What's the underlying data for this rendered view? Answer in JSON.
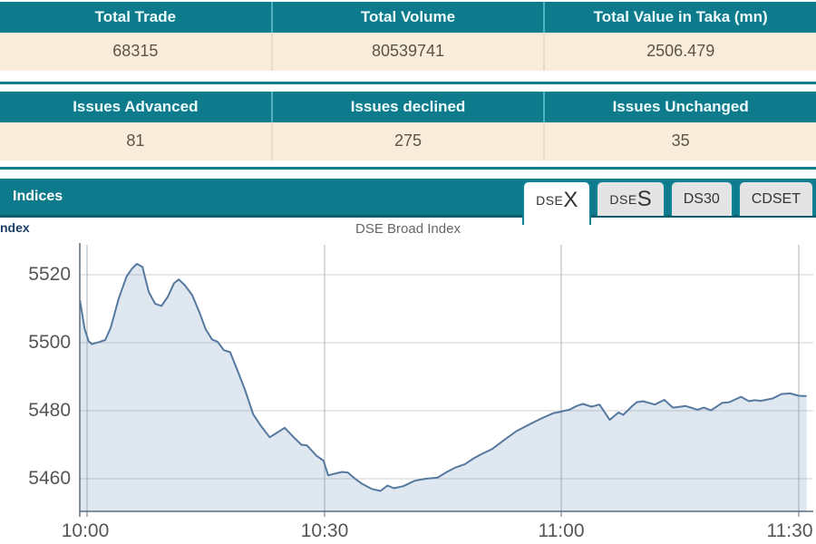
{
  "summary_table": {
    "headers": [
      "Total Trade",
      "Total Volume",
      "Total Value in Taka (mn)"
    ],
    "values": [
      "68315",
      "80539741",
      "2506.479"
    ]
  },
  "issues_table": {
    "headers": [
      "Issues Advanced",
      "Issues declined",
      "Issues Unchanged"
    ],
    "values": [
      "81",
      "275",
      "35"
    ]
  },
  "indices": {
    "title": "Indices",
    "tabs": [
      {
        "label_small": "DSE",
        "label_big": "X",
        "label": "DSEX",
        "active": true
      },
      {
        "label_small": "DSE",
        "label_big": "S",
        "label": "DSES",
        "active": false
      },
      {
        "label": "DS30",
        "active": false
      },
      {
        "label": "CDSET",
        "active": false
      }
    ]
  },
  "chart": {
    "partial_left_label": "ndex",
    "title": "DSE Broad Index"
  },
  "colors": {
    "teal": "#0e7b8c",
    "teal_dark": "#0a5c6b",
    "tab_border": "#0f8294",
    "cream": "#f9ecdb",
    "line": "#56799f",
    "fill": "rgba(110,145,185,0.22)",
    "grid_h": "#cfcfcf",
    "grid_v": "#aab3bb",
    "axis": "#5d6e7e",
    "label_gray": "#555555"
  },
  "chart_data": {
    "type": "area",
    "title": "DSE Broad Index",
    "x_unit": "minutes after 10:00",
    "x_tick_labels": [
      "10:00",
      "10:30",
      "11:00",
      "11:30"
    ],
    "x_tick_minutes": [
      0,
      30,
      60,
      90
    ],
    "y_tick_labels": [
      "5520",
      "5500",
      "5480",
      "5460"
    ],
    "ylim": [
      5450,
      5530
    ],
    "grid": true,
    "legend_position": "none",
    "series": [
      {
        "name": "DSE Broad Index",
        "points": [
          [
            -0.9,
            5512.5
          ],
          [
            -0.3,
            5504.0
          ],
          [
            0.2,
            5500.5
          ],
          [
            0.6,
            5499.6
          ],
          [
            1.5,
            5500.2
          ],
          [
            2.3,
            5500.8
          ],
          [
            3.0,
            5504.5
          ],
          [
            4.0,
            5513.0
          ],
          [
            5.0,
            5519.5
          ],
          [
            5.7,
            5521.8
          ],
          [
            6.3,
            5523.2
          ],
          [
            7.0,
            5522.3
          ],
          [
            7.8,
            5515.0
          ],
          [
            8.6,
            5511.5
          ],
          [
            9.4,
            5510.8
          ],
          [
            10.2,
            5513.5
          ],
          [
            11.0,
            5517.5
          ],
          [
            11.6,
            5518.6
          ],
          [
            12.4,
            5516.8
          ],
          [
            13.3,
            5514.0
          ],
          [
            14.2,
            5509.0
          ],
          [
            15.0,
            5504.0
          ],
          [
            15.8,
            5501.0
          ],
          [
            16.5,
            5500.3
          ],
          [
            17.3,
            5497.8
          ],
          [
            18.1,
            5497.2
          ],
          [
            19.0,
            5492.0
          ],
          [
            20.0,
            5486.0
          ],
          [
            21.0,
            5479.0
          ],
          [
            22.0,
            5475.5
          ],
          [
            23.1,
            5472.2
          ],
          [
            24.0,
            5473.5
          ],
          [
            25.0,
            5475.0
          ],
          [
            26.0,
            5472.5
          ],
          [
            27.1,
            5470.0
          ],
          [
            27.8,
            5469.8
          ],
          [
            29.0,
            5466.8
          ],
          [
            29.9,
            5465.3
          ],
          [
            30.5,
            5461.0
          ],
          [
            31.5,
            5461.6
          ],
          [
            32.3,
            5462.0
          ],
          [
            33.0,
            5461.8
          ],
          [
            34.0,
            5459.8
          ],
          [
            34.7,
            5458.6
          ],
          [
            36.0,
            5457.0
          ],
          [
            37.1,
            5456.4
          ],
          [
            38.0,
            5458.0
          ],
          [
            38.8,
            5457.2
          ],
          [
            40.0,
            5457.8
          ],
          [
            41.4,
            5459.4
          ],
          [
            42.8,
            5460.0
          ],
          [
            44.3,
            5460.3
          ],
          [
            45.5,
            5462.0
          ],
          [
            46.6,
            5463.3
          ],
          [
            47.8,
            5464.3
          ],
          [
            48.9,
            5466.0
          ],
          [
            50.0,
            5467.4
          ],
          [
            51.2,
            5468.7
          ],
          [
            52.8,
            5471.5
          ],
          [
            54.3,
            5474.0
          ],
          [
            55.3,
            5475.2
          ],
          [
            56.2,
            5476.3
          ],
          [
            57.7,
            5478.0
          ],
          [
            59.0,
            5479.3
          ],
          [
            59.7,
            5479.6
          ],
          [
            60.2,
            5479.9
          ],
          [
            61.0,
            5480.3
          ],
          [
            62.0,
            5481.5
          ],
          [
            62.7,
            5482.0
          ],
          [
            63.8,
            5481.2
          ],
          [
            64.8,
            5481.8
          ],
          [
            66.1,
            5477.3
          ],
          [
            67.2,
            5479.5
          ],
          [
            67.8,
            5478.8
          ],
          [
            69.0,
            5481.5
          ],
          [
            69.5,
            5482.5
          ],
          [
            70.3,
            5482.8
          ],
          [
            71.8,
            5481.8
          ],
          [
            73.0,
            5483.2
          ],
          [
            74.1,
            5480.9
          ],
          [
            75.7,
            5481.4
          ],
          [
            77.2,
            5480.3
          ],
          [
            78.0,
            5480.9
          ],
          [
            78.9,
            5480.1
          ],
          [
            80.3,
            5482.3
          ],
          [
            81.2,
            5482.5
          ],
          [
            82.7,
            5484.1
          ],
          [
            83.7,
            5482.8
          ],
          [
            84.4,
            5483.1
          ],
          [
            85.2,
            5482.9
          ],
          [
            86.7,
            5483.6
          ],
          [
            87.8,
            5484.9
          ],
          [
            88.9,
            5485.1
          ],
          [
            90.0,
            5484.4
          ],
          [
            91.0,
            5484.3
          ]
        ]
      }
    ]
  }
}
